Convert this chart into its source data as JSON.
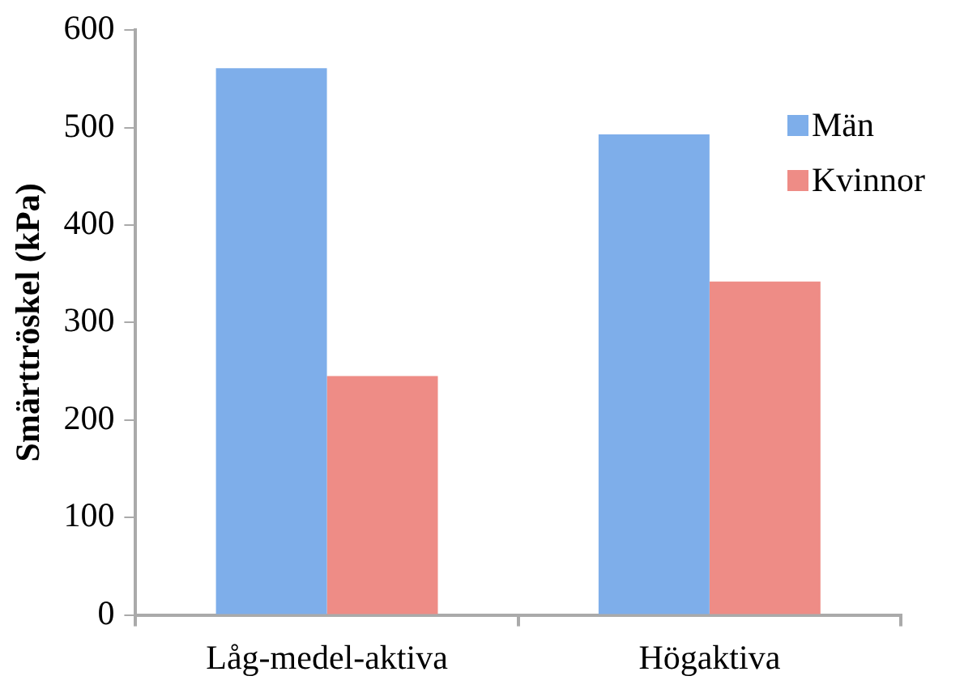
{
  "chart_data": {
    "type": "bar",
    "ylabel": "Smärttröskel (kPa)",
    "categories": [
      "Låg-medel-aktiva",
      "Högaktiva"
    ],
    "series": [
      {
        "name": "Män",
        "color": "#7eaeea",
        "values": [
          561,
          493
        ]
      },
      {
        "name": "Kvinnor",
        "color": "#ee8c86",
        "values": [
          245,
          342
        ]
      }
    ],
    "ylim": [
      0,
      600
    ],
    "yticks": [
      0,
      100,
      200,
      300,
      400,
      500,
      600
    ],
    "grid": false,
    "legend": "top right"
  }
}
